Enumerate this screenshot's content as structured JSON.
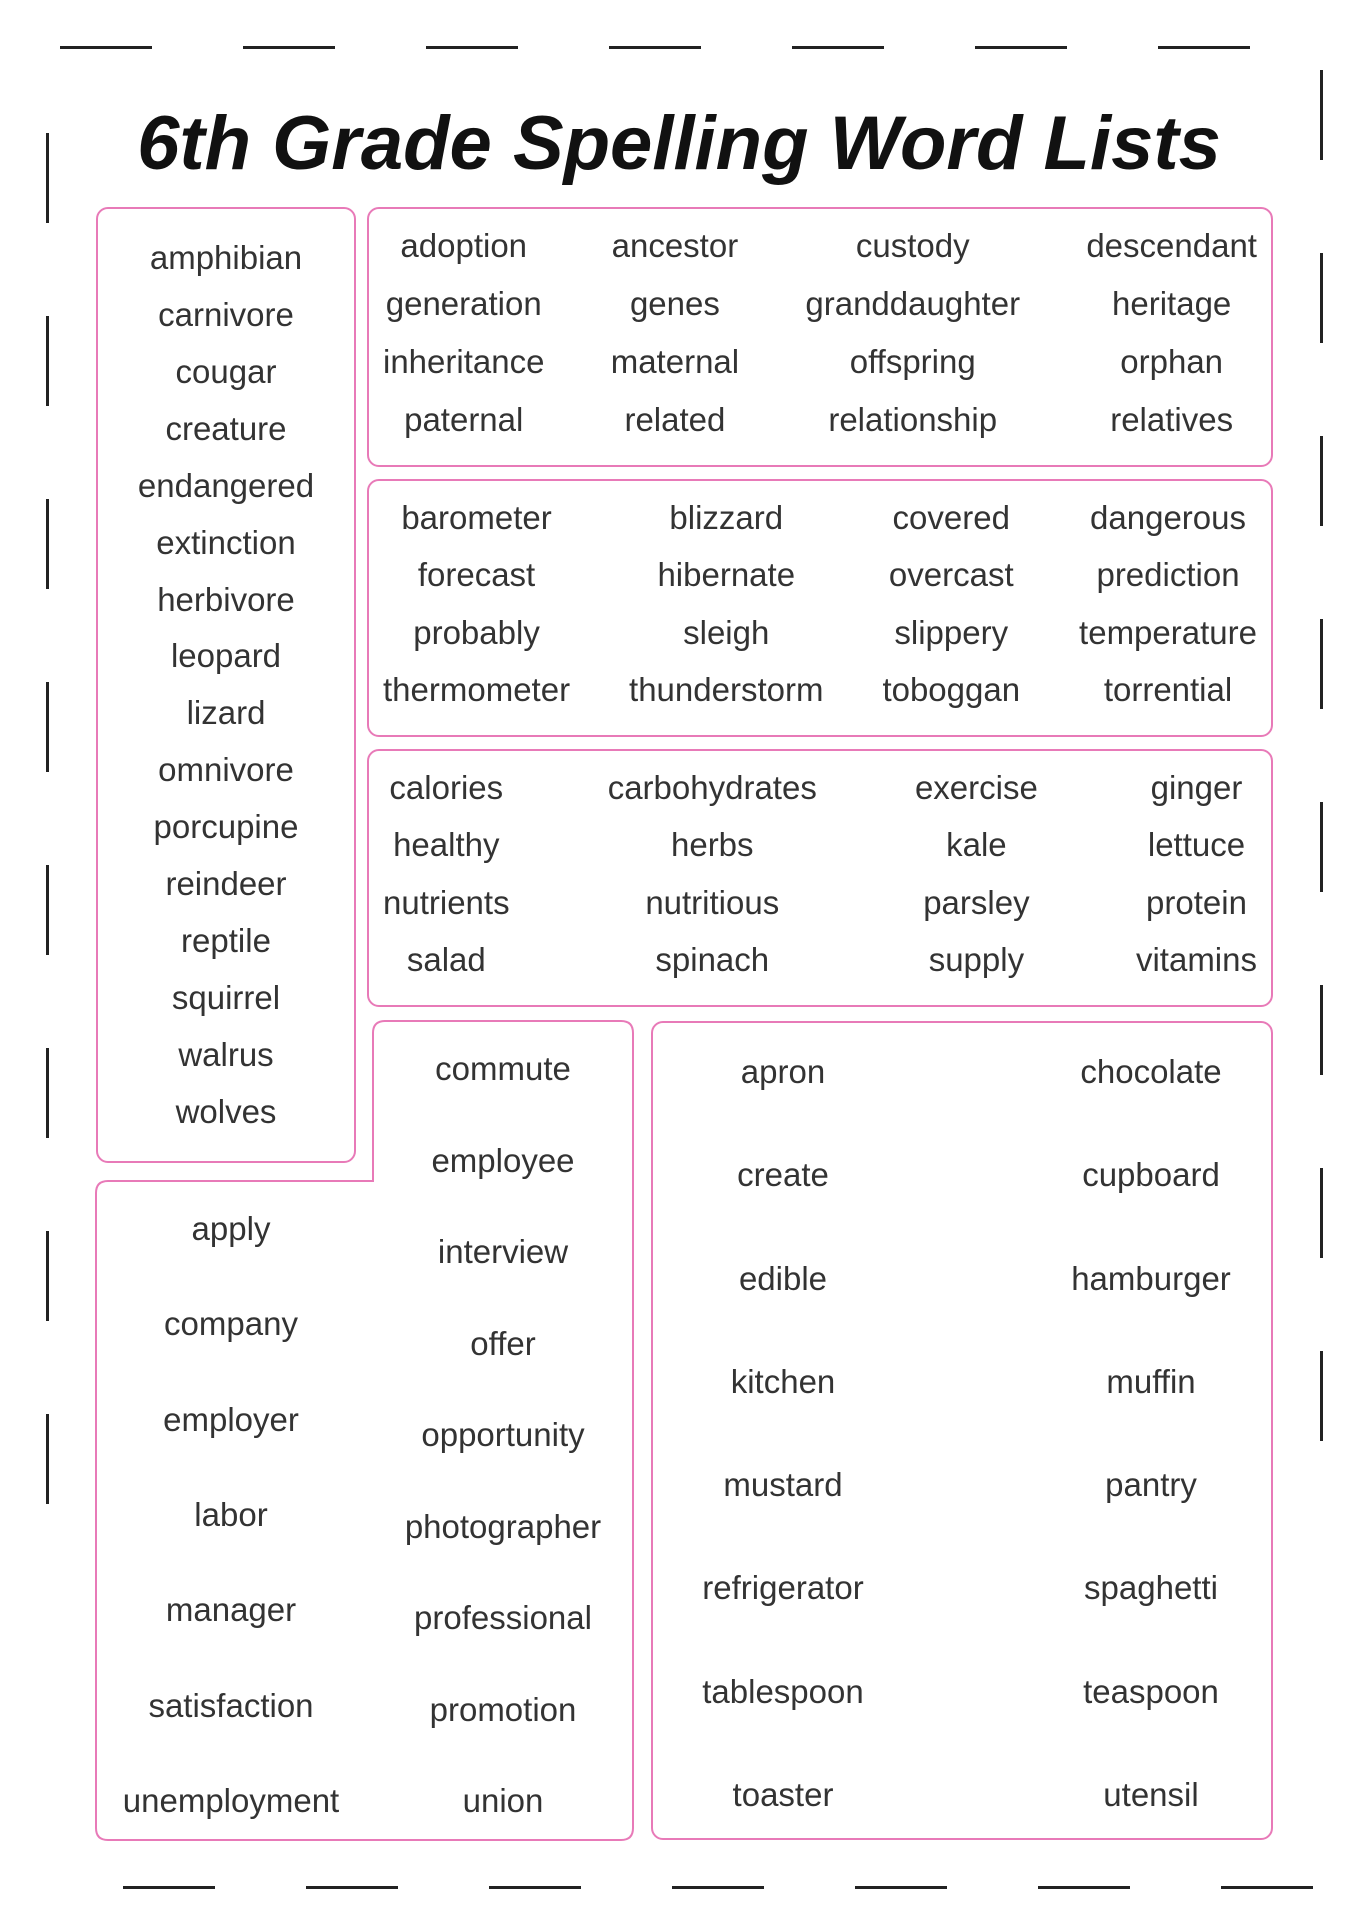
{
  "title": "6th Grade Spelling Word Lists",
  "accent_color": "#e87ab8",
  "lists": {
    "animals": [
      "amphibian",
      "carnivore",
      "cougar",
      "creature",
      "endangered",
      "extinction",
      "herbivore",
      "leopard",
      "lizard",
      "omnivore",
      "porcupine",
      "reindeer",
      "reptile",
      "squirrel",
      "walrus",
      "wolves"
    ],
    "family": [
      "adoption",
      "ancestor",
      "custody",
      "descendant",
      "generation",
      "genes",
      "granddaughter",
      "heritage",
      "inheritance",
      "maternal",
      "offspring",
      "orphan",
      "paternal",
      "related",
      "relationship",
      "relatives"
    ],
    "weather": [
      "barometer",
      "blizzard",
      "covered",
      "dangerous",
      "forecast",
      "hibernate",
      "overcast",
      "prediction",
      "probably",
      "sleigh",
      "slippery",
      "temperature",
      "thermometer",
      "thunderstorm",
      "toboggan",
      "torrential"
    ],
    "food": [
      "calories",
      "carbohydrates",
      "exercise",
      "ginger",
      "healthy",
      "herbs",
      "kale",
      "lettuce",
      "nutrients",
      "nutritious",
      "parsley",
      "protein",
      "salad",
      "spinach",
      "supply",
      "vitamins"
    ],
    "jobs_left": [
      "apply",
      "company",
      "employer",
      "labor",
      "manager",
      "satisfaction",
      "unemployment"
    ],
    "jobs_right": [
      "commute",
      "employee",
      "interview",
      "offer",
      "opportunity",
      "photographer",
      "professional",
      "promotion",
      "union"
    ],
    "kitchen_left": [
      "apron",
      "create",
      "edible",
      "kitchen",
      "mustard",
      "refrigerator",
      "tablespoon",
      "toaster"
    ],
    "kitchen_right": [
      "chocolate",
      "cupboard",
      "hamburger",
      "muffin",
      "pantry",
      "spaghetti",
      "teaspoon",
      "utensil"
    ]
  }
}
